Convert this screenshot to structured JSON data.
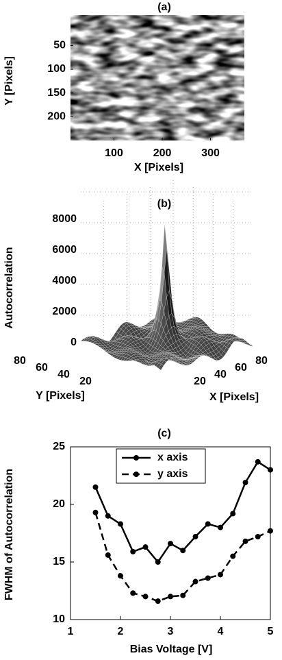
{
  "chart_data": [
    {
      "type": "image",
      "title": "(a)",
      "xlabel": "X [Pixels]",
      "ylabel": "Y [Pixels]",
      "xlim": [
        10,
        370
      ],
      "xticks": [
        100,
        200,
        300
      ],
      "ylim": [
        -14,
        250
      ],
      "yticks": [
        50,
        100,
        150,
        200
      ]
    },
    {
      "type": "surface3d",
      "title": "(b)",
      "xlabel": "X [Pixels]",
      "ylabel": "Y [Pixels]",
      "zlabel": "Autocorrelation",
      "xlim": [
        0,
        90
      ],
      "xticks": [
        20,
        40,
        60,
        80
      ],
      "ylim": [
        0,
        90
      ],
      "yticks": [
        20,
        40,
        60,
        80
      ],
      "zlim": [
        0,
        9000
      ],
      "zticks": [
        0,
        2000,
        4000,
        6000,
        8000
      ]
    },
    {
      "type": "line",
      "title": "(c)",
      "xlabel": "Bias Voltage [V]",
      "ylabel": "FWHM of Autocorrelation",
      "x": [
        1.5,
        1.75,
        2,
        2.25,
        2.5,
        2.75,
        3,
        3.25,
        3.5,
        3.75,
        4,
        4.25,
        4.5,
        4.75,
        5
      ],
      "xlim": [
        1,
        5
      ],
      "xticks": [
        1,
        2,
        3,
        4,
        5
      ],
      "ylim": [
        10,
        25
      ],
      "yticks": [
        10,
        15,
        20,
        25
      ],
      "legend": "upper left",
      "series": [
        {
          "name": "x axis",
          "color": "#000000",
          "dash": "solid",
          "values": [
            21.5,
            19.0,
            18.3,
            15.9,
            16.3,
            15.0,
            16.6,
            16.0,
            17.2,
            18.3,
            18.0,
            19.2,
            21.9,
            23.7,
            23.0
          ]
        },
        {
          "name": "y axis",
          "color": "#000000",
          "dash": "dashed",
          "values": [
            19.3,
            15.6,
            13.8,
            12.3,
            12.0,
            11.6,
            12.0,
            12.1,
            13.3,
            13.6,
            13.9,
            15.5,
            16.8,
            17.2,
            17.7
          ]
        }
      ]
    }
  ]
}
